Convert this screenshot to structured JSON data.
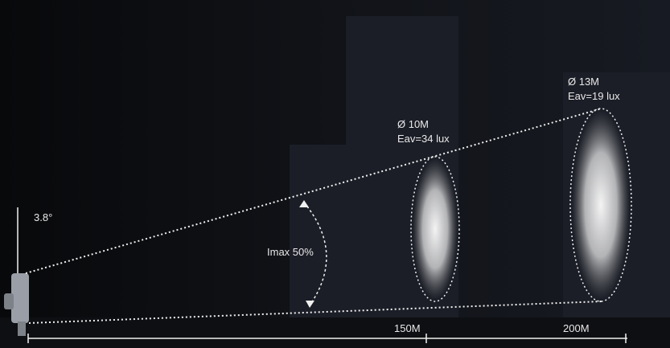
{
  "beam_angle": "3.8°",
  "intensity_label": "Imax 50%",
  "spots": [
    {
      "diameter": "Ø 10M",
      "illuminance": "Eav=34 lux",
      "distance": "150M"
    },
    {
      "diameter": "Ø 13M",
      "illuminance": "Eav=19 lux",
      "distance": "200M"
    }
  ]
}
